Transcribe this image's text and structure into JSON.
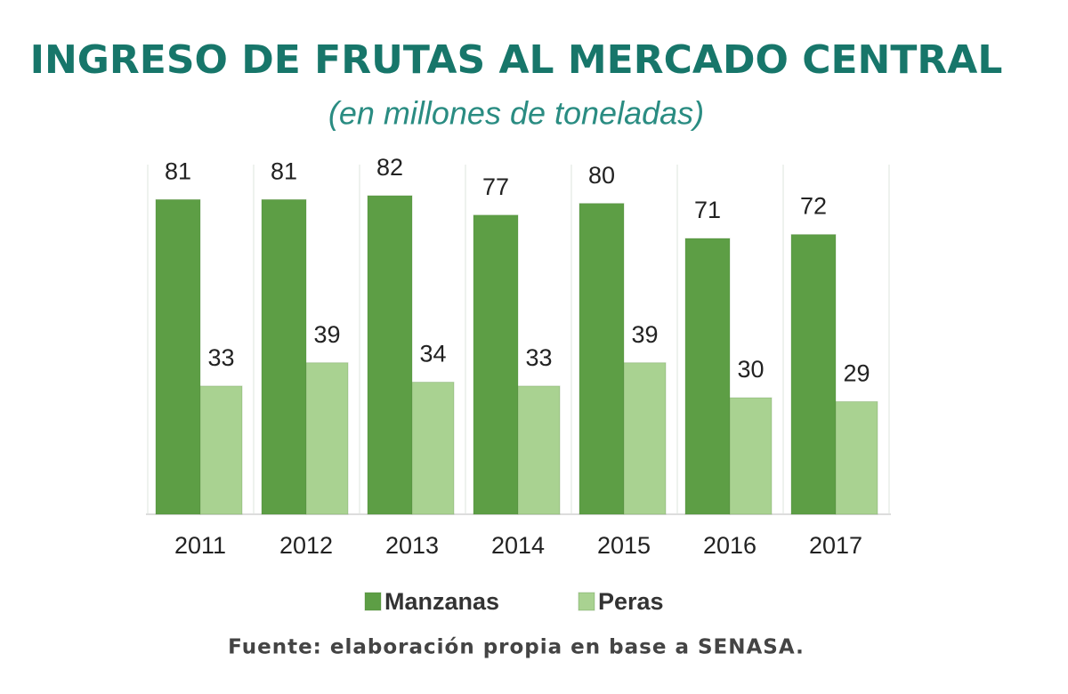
{
  "chart_data": {
    "type": "bar",
    "title": "INGRESO DE FRUTAS AL MERCADO CENTRAL",
    "subtitle": "(en millones de toneladas)",
    "categories": [
      "2011",
      "2012",
      "2013",
      "2014",
      "2015",
      "2016",
      "2017"
    ],
    "series": [
      {
        "name": "Manzanas",
        "color": "#5d9e45",
        "values": [
          81,
          81,
          82,
          77,
          80,
          71,
          72
        ]
      },
      {
        "name": "Peras",
        "color": "#a9d291",
        "values": [
          33,
          39,
          34,
          33,
          39,
          30,
          29
        ]
      }
    ],
    "ylim": [
      0,
      90
    ],
    "source": "Fuente: elaboración propia en base a SENASA."
  }
}
